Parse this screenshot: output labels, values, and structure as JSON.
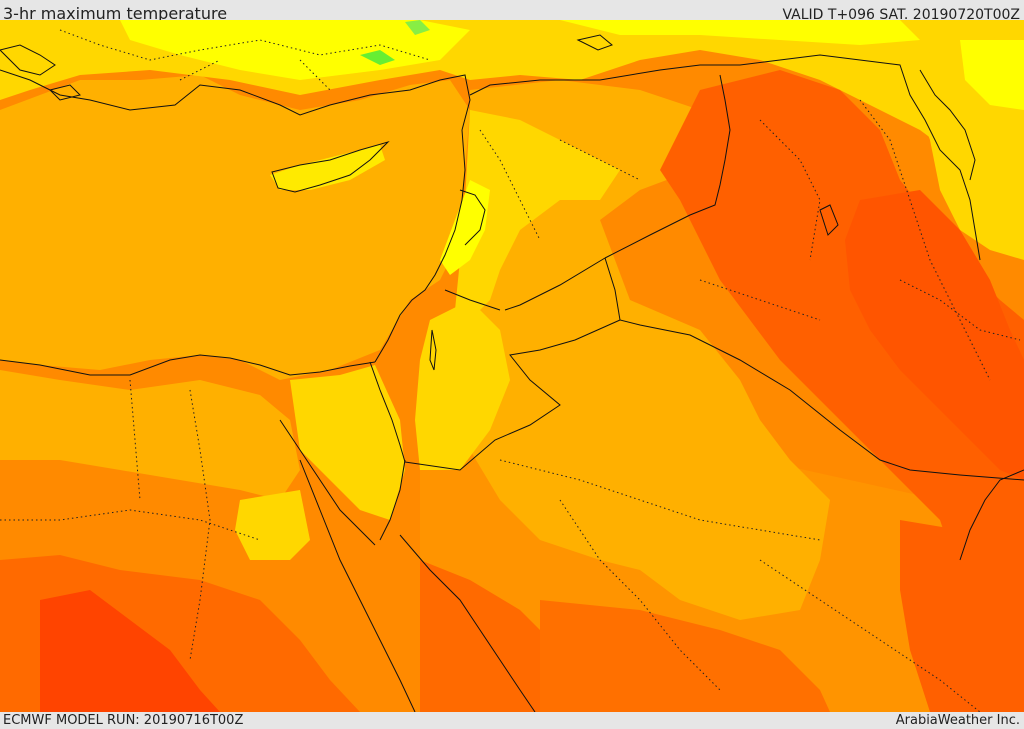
{
  "header": {
    "title": "3-hr maximum temperature",
    "valid_time": "VALID T+096 SAT. 20190720T00Z"
  },
  "footer": {
    "model_run": "ECMWF MODEL RUN: 20190716T00Z",
    "provider": "ArabiaWeather Inc."
  },
  "colors": {
    "band_green": "#66ee33",
    "band_yellow_light": "#ffff66",
    "band_yellow": "#ffff00",
    "band_gold": "#ffd700",
    "band_amber": "#ffb000",
    "band_orange": "#ff9000",
    "band_dark_orange": "#ff7a00",
    "band_red_orange": "#ff5500",
    "band_red": "#ff2a00",
    "border_line": "#111111"
  }
}
